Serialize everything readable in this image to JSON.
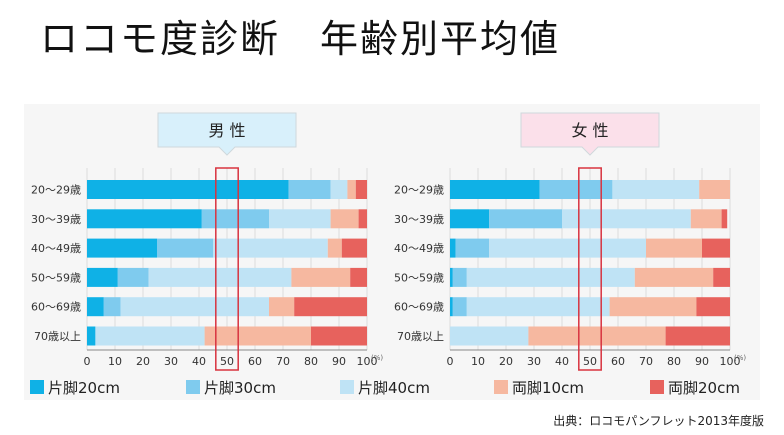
{
  "page": {
    "title": "ロコモ度診断　年齢別平均値",
    "source": "出典：ロコモパンフレット2013年度版"
  },
  "colors": {
    "片脚20cm": "#0fb1e6",
    "片脚30cm": "#7fcbee",
    "片脚40cm": "#bfe3f5",
    "両脚10cm": "#f6b8a0",
    "両脚20cm": "#e7625d",
    "highlight": "#d8333f",
    "male_header": "#d8f0fb",
    "female_header": "#fbe0ea"
  },
  "chart_data": [
    {
      "type": "bar",
      "orientation": "horizontal",
      "stacked": true,
      "title": "男 性",
      "categories": [
        "20～29歳",
        "30～39歳",
        "40～49歳",
        "50～59歳",
        "60～69歳",
        "70歳以上"
      ],
      "series": [
        {
          "name": "片脚20cm",
          "values": [
            72,
            41,
            25,
            11,
            6,
            3
          ]
        },
        {
          "name": "片脚30cm",
          "values": [
            15,
            24,
            20,
            11,
            6,
            0
          ]
        },
        {
          "name": "片脚40cm",
          "values": [
            6,
            22,
            41,
            51,
            53,
            39
          ]
        },
        {
          "name": "両脚10cm",
          "values": [
            3,
            10,
            5,
            21,
            9,
            38
          ]
        },
        {
          "name": "両脚20cm",
          "values": [
            4,
            3,
            9,
            6,
            26,
            20
          ]
        }
      ],
      "x_ticks": [
        "0",
        "10",
        "20",
        "30",
        "40",
        "50",
        "60",
        "70",
        "80",
        "90",
        "100"
      ],
      "x_unit": "(%)",
      "xlim": [
        0,
        100
      ],
      "highlight_range": [
        46,
        54
      ],
      "highlight_label": "50"
    },
    {
      "type": "bar",
      "orientation": "horizontal",
      "stacked": true,
      "title": "女 性",
      "categories": [
        "20～29歳",
        "30～39歳",
        "40～49歳",
        "50～59歳",
        "60～69歳",
        "70歳以上"
      ],
      "series": [
        {
          "name": "片脚20cm",
          "values": [
            32,
            14,
            2,
            1,
            1,
            0
          ]
        },
        {
          "name": "片脚30cm",
          "values": [
            26,
            26,
            12,
            5,
            5,
            0
          ]
        },
        {
          "name": "片脚40cm",
          "values": [
            31,
            46,
            56,
            60,
            51,
            28
          ]
        },
        {
          "name": "両脚10cm",
          "values": [
            11,
            11,
            20,
            28,
            31,
            49
          ]
        },
        {
          "name": "両脚20cm",
          "values": [
            0,
            2,
            10,
            6,
            12,
            23
          ]
        }
      ],
      "x_ticks": [
        "0",
        "10",
        "20",
        "30",
        "40",
        "50",
        "60",
        "70",
        "80",
        "90",
        "100"
      ],
      "x_unit": "(%)",
      "xlim": [
        0,
        100
      ],
      "highlight_range": [
        46,
        54
      ],
      "highlight_label": "50"
    }
  ],
  "legend": [
    {
      "label": "片脚20cm"
    },
    {
      "label": "片脚30cm"
    },
    {
      "label": "片脚40cm"
    },
    {
      "label": "両脚10cm"
    },
    {
      "label": "両脚20cm"
    }
  ]
}
